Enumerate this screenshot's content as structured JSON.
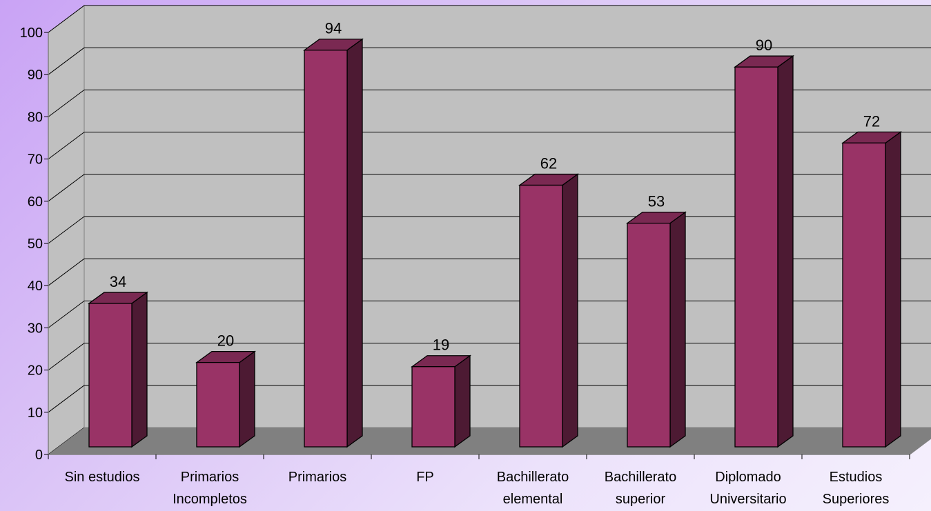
{
  "chart_data": {
    "type": "bar",
    "title": "",
    "xlabel": "",
    "ylabel": "",
    "ylim": [
      0,
      100
    ],
    "ytick_step": 10,
    "grid": true,
    "legend": "none",
    "categories": [
      [
        "Sin estudios"
      ],
      [
        "Primarios",
        "Incompletos"
      ],
      [
        "Primarios"
      ],
      [
        "FP"
      ],
      [
        "Bachillerato",
        "elemental"
      ],
      [
        "Bachillerato",
        "superior"
      ],
      [
        "Diplomado",
        "Universitario"
      ],
      [
        "Estudios",
        "Superiores"
      ]
    ],
    "values": [
      34,
      20,
      94,
      19,
      62,
      53,
      90,
      72
    ],
    "colors": {
      "background": "#c9a3f5",
      "wall": "#c0c0c0",
      "floor": "#808080",
      "bar_front": "#993366",
      "bar_side": "#4d1a33",
      "bar_top": "#7a2952",
      "grid": "#000000"
    }
  }
}
